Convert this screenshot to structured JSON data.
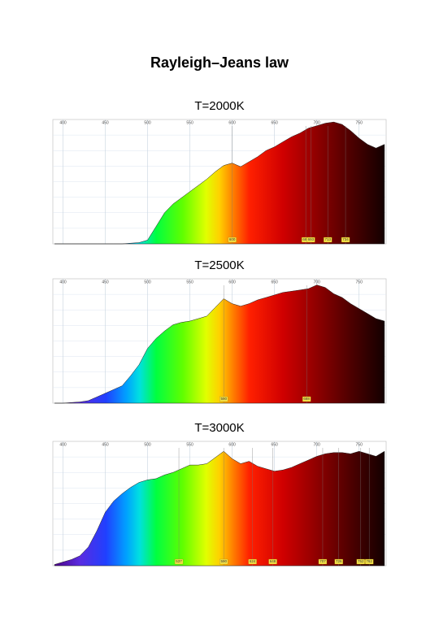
{
  "title": "Rayleigh–Jeans law",
  "chart_data": [
    {
      "type": "area",
      "title": "T=2000K",
      "x": [
        390,
        400,
        410,
        420,
        430,
        440,
        450,
        460,
        470,
        480,
        490,
        500,
        510,
        520,
        530,
        540,
        550,
        560,
        570,
        580,
        590,
        600,
        610,
        620,
        630,
        640,
        650,
        660,
        670,
        680,
        690,
        700,
        710,
        720,
        730,
        740,
        750,
        760,
        770,
        780
      ],
      "values": [
        0,
        0,
        0,
        0,
        0,
        0,
        0,
        0,
        0,
        0.5,
        1,
        3,
        14,
        25,
        32,
        37,
        42,
        47,
        52,
        58,
        63,
        65,
        62,
        66,
        70,
        75,
        78,
        82,
        86,
        89,
        93,
        95,
        97,
        98,
        96,
        91,
        85,
        80,
        77,
        80
      ],
      "xlim": [
        388,
        782
      ],
      "xticks": [
        400,
        450,
        500,
        550,
        600,
        650,
        700,
        750
      ],
      "markers": [
        600,
        687,
        693,
        713,
        734
      ]
    },
    {
      "type": "area",
      "title": "T=2500K",
      "x": [
        390,
        400,
        410,
        420,
        430,
        440,
        450,
        460,
        470,
        480,
        490,
        500,
        510,
        520,
        530,
        540,
        550,
        560,
        570,
        580,
        590,
        600,
        610,
        620,
        630,
        640,
        650,
        660,
        670,
        680,
        690,
        700,
        710,
        720,
        730,
        740,
        750,
        760,
        770,
        780
      ],
      "values": [
        0,
        0,
        0.5,
        1,
        2,
        5,
        8,
        11,
        14,
        22,
        31,
        44,
        52,
        58,
        63,
        65,
        66,
        68,
        70,
        77,
        84,
        80,
        78,
        80,
        83,
        85,
        87,
        89,
        90,
        91,
        92,
        95,
        93,
        88,
        85,
        80,
        76,
        72,
        68,
        66
      ],
      "xlim": [
        388,
        782
      ],
      "xticks": [
        400,
        450,
        500,
        550,
        600,
        650,
        700,
        750
      ],
      "markers": [
        590,
        688
      ]
    },
    {
      "type": "area",
      "title": "T=3000K",
      "x": [
        390,
        400,
        410,
        420,
        430,
        440,
        450,
        460,
        470,
        480,
        490,
        500,
        510,
        520,
        530,
        540,
        550,
        560,
        570,
        580,
        590,
        600,
        610,
        620,
        630,
        640,
        650,
        660,
        670,
        680,
        690,
        700,
        710,
        720,
        730,
        740,
        750,
        760,
        770,
        780
      ],
      "values": [
        1,
        3,
        5,
        8,
        15,
        28,
        43,
        52,
        58,
        63,
        67,
        69,
        70,
        73,
        75,
        78,
        81,
        81,
        82,
        87,
        92,
        86,
        82,
        84,
        80,
        78,
        76,
        77,
        79,
        82,
        85,
        88,
        90,
        91,
        91,
        90,
        92,
        90,
        88,
        92
      ],
      "xlim": [
        388,
        782
      ],
      "xticks": [
        400,
        450,
        500,
        550,
        600,
        650,
        700,
        750
      ],
      "markers": [
        537,
        590,
        624,
        648,
        707,
        726,
        752,
        762
      ]
    }
  ]
}
